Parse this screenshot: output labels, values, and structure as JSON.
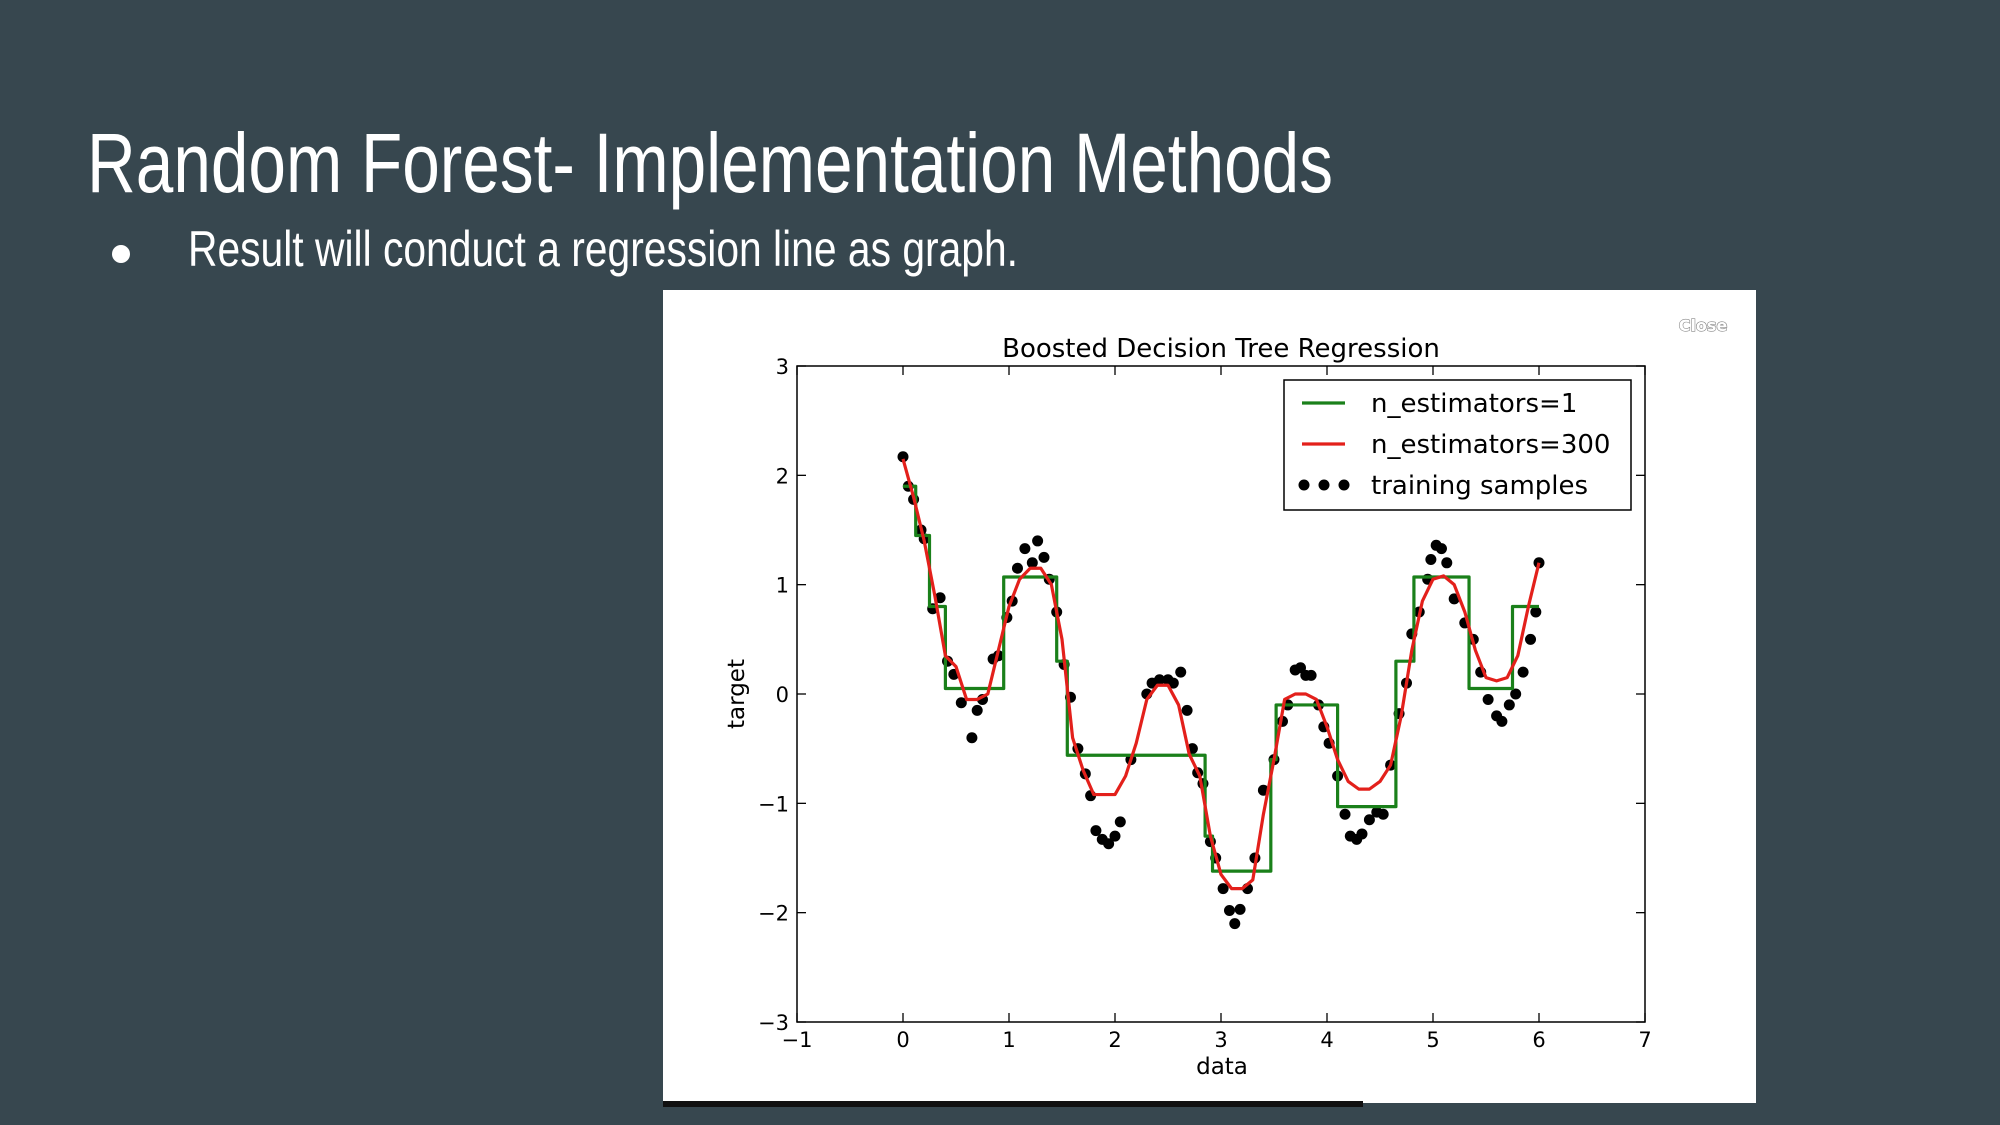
{
  "slide": {
    "title": "Random Forest- Implementation Methods",
    "bullet": "Result will conduct a regression line as graph.",
    "close_button": "Close"
  },
  "chart_data": {
    "type": "line",
    "title": "Boosted Decision Tree Regression",
    "x_label": "data",
    "y_label": "target",
    "xlim": [
      -1,
      7
    ],
    "ylim": [
      -3,
      3
    ],
    "xticks": [
      {
        "value": -1,
        "label": "−1"
      },
      0,
      1,
      2,
      3,
      4,
      5,
      6,
      7
    ],
    "yticks": [
      {
        "value": -3,
        "label": "−3"
      },
      {
        "value": -2,
        "label": "−2"
      },
      {
        "value": -1,
        "label": "−1"
      },
      0,
      1,
      2,
      3
    ],
    "legend": "upper right",
    "series": [
      {
        "name": "n_estimators=1",
        "type": "line",
        "color": "#1a801a",
        "x": [
          0,
          0.12,
          0.12,
          0.25,
          0.25,
          0.4,
          0.4,
          0.95,
          0.95,
          1.45,
          1.45,
          1.55,
          1.55,
          2.85,
          2.85,
          2.92,
          2.92,
          3.47,
          3.47,
          3.52,
          3.52,
          4.1,
          4.1,
          4.65,
          4.65,
          4.82,
          4.82,
          5.34,
          5.34,
          5.75,
          5.75,
          6.0
        ],
        "values": [
          1.9,
          1.9,
          1.45,
          1.45,
          0.8,
          0.8,
          0.05,
          0.05,
          1.07,
          1.07,
          0.3,
          0.3,
          -0.56,
          -0.56,
          -1.3,
          -1.3,
          -1.62,
          -1.62,
          -0.6,
          -0.6,
          -0.1,
          -0.1,
          -1.03,
          -1.03,
          0.3,
          0.3,
          1.07,
          1.07,
          0.05,
          0.05,
          0.8,
          0.8
        ]
      },
      {
        "name": "n_estimators=300",
        "type": "line",
        "color": "#e3201b",
        "x": [
          0,
          0.1,
          0.2,
          0.3,
          0.4,
          0.5,
          0.6,
          0.7,
          0.8,
          0.9,
          1.0,
          1.1,
          1.2,
          1.3,
          1.4,
          1.5,
          1.6,
          1.7,
          1.8,
          1.9,
          2.0,
          2.1,
          2.2,
          2.3,
          2.4,
          2.5,
          2.6,
          2.7,
          2.8,
          2.9,
          3.0,
          3.1,
          3.2,
          3.3,
          3.4,
          3.5,
          3.6,
          3.7,
          3.8,
          3.9,
          4.0,
          4.1,
          4.2,
          4.3,
          4.4,
          4.5,
          4.6,
          4.7,
          4.8,
          4.9,
          5.0,
          5.1,
          5.2,
          5.3,
          5.4,
          5.5,
          5.6,
          5.7,
          5.8,
          5.9,
          6.0
        ],
        "values": [
          2.15,
          1.8,
          1.4,
          0.9,
          0.35,
          0.25,
          -0.05,
          -0.05,
          0.0,
          0.4,
          0.8,
          1.05,
          1.15,
          1.15,
          1.0,
          0.5,
          -0.4,
          -0.7,
          -0.92,
          -0.92,
          -0.92,
          -0.75,
          -0.45,
          -0.05,
          0.08,
          0.08,
          -0.1,
          -0.55,
          -0.75,
          -1.3,
          -1.65,
          -1.78,
          -1.78,
          -1.7,
          -1.1,
          -0.6,
          -0.05,
          0.0,
          0.0,
          -0.05,
          -0.3,
          -0.6,
          -0.8,
          -0.87,
          -0.87,
          -0.8,
          -0.65,
          -0.2,
          0.4,
          0.85,
          1.05,
          1.08,
          1.0,
          0.75,
          0.4,
          0.15,
          0.12,
          0.15,
          0.35,
          0.8,
          1.2
        ]
      },
      {
        "name": "training samples",
        "type": "scatter",
        "color": "#000000",
        "x": [
          0,
          0.05,
          0.1,
          0.17,
          0.2,
          0.28,
          0.35,
          0.42,
          0.48,
          0.55,
          0.65,
          0.7,
          0.75,
          0.85,
          0.9,
          0.98,
          1.03,
          1.08,
          1.15,
          1.22,
          1.27,
          1.33,
          1.38,
          1.45,
          1.52,
          1.58,
          1.65,
          1.72,
          1.77,
          1.82,
          1.88,
          1.94,
          2.0,
          2.05,
          2.15,
          2.3,
          2.35,
          2.42,
          2.5,
          2.55,
          2.62,
          2.68,
          2.73,
          2.78,
          2.83,
          2.9,
          2.95,
          3.02,
          3.08,
          3.13,
          3.18,
          3.25,
          3.32,
          3.4,
          3.5,
          3.58,
          3.63,
          3.7,
          3.75,
          3.8,
          3.85,
          3.92,
          3.97,
          4.02,
          4.1,
          4.17,
          4.22,
          4.28,
          4.33,
          4.4,
          4.47,
          4.53,
          4.6,
          4.68,
          4.75,
          4.8,
          4.87,
          4.95,
          4.98,
          5.03,
          5.08,
          5.13,
          5.2,
          5.3,
          5.38,
          5.45,
          5.52,
          5.6,
          5.65,
          5.72,
          5.78,
          5.85,
          5.92,
          5.97,
          6.0
        ],
        "values": [
          2.17,
          1.9,
          1.78,
          1.5,
          1.42,
          0.78,
          0.88,
          0.3,
          0.18,
          -0.08,
          -0.4,
          -0.15,
          -0.05,
          0.32,
          0.35,
          0.7,
          0.85,
          1.15,
          1.33,
          1.2,
          1.4,
          1.25,
          1.05,
          0.75,
          0.27,
          -0.03,
          -0.5,
          -0.73,
          -0.93,
          -1.25,
          -1.33,
          -1.37,
          -1.3,
          -1.17,
          -0.6,
          0.0,
          0.1,
          0.13,
          0.13,
          0.1,
          0.2,
          -0.15,
          -0.5,
          -0.72,
          -0.82,
          -1.35,
          -1.5,
          -1.78,
          -1.98,
          -2.1,
          -1.97,
          -1.78,
          -1.5,
          -0.88,
          -0.6,
          -0.25,
          -0.1,
          0.22,
          0.24,
          0.17,
          0.17,
          -0.1,
          -0.3,
          -0.45,
          -0.75,
          -1.1,
          -1.3,
          -1.33,
          -1.28,
          -1.15,
          -1.08,
          -1.1,
          -0.65,
          -0.18,
          0.1,
          0.55,
          0.75,
          1.05,
          1.23,
          1.36,
          1.33,
          1.2,
          0.87,
          0.65,
          0.5,
          0.2,
          -0.05,
          -0.2,
          -0.25,
          -0.1,
          0.0,
          0.2,
          0.5,
          0.75,
          1.2
        ]
      }
    ]
  }
}
